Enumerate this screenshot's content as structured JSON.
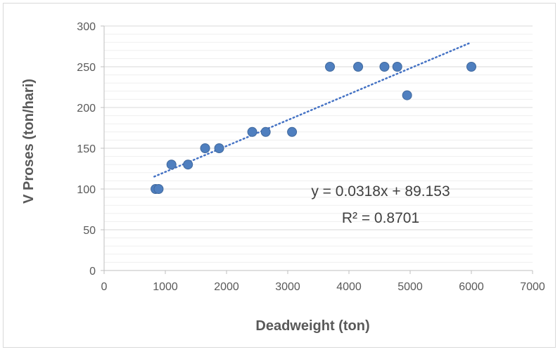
{
  "chart_data": {
    "type": "scatter",
    "xlabel": "Deadweight (ton)",
    "ylabel": "V Proses (ton/hari)",
    "xlim": [
      0,
      7000
    ],
    "ylim": [
      0,
      300
    ],
    "x_ticks": [
      0,
      1000,
      2000,
      3000,
      4000,
      5000,
      6000,
      7000
    ],
    "y_ticks": [
      0,
      50,
      100,
      150,
      200,
      250,
      300
    ],
    "grid": "horizontal major and minor",
    "legend": "none",
    "marker_color": "#4f7fbf",
    "trend_color": "#4472c4",
    "points": [
      {
        "x": 840,
        "y": 100
      },
      {
        "x": 890,
        "y": 100
      },
      {
        "x": 1100,
        "y": 130
      },
      {
        "x": 1370,
        "y": 130
      },
      {
        "x": 1650,
        "y": 150
      },
      {
        "x": 1880,
        "y": 150
      },
      {
        "x": 2420,
        "y": 170
      },
      {
        "x": 2640,
        "y": 170
      },
      {
        "x": 3070,
        "y": 170
      },
      {
        "x": 3690,
        "y": 250
      },
      {
        "x": 4150,
        "y": 250
      },
      {
        "x": 4580,
        "y": 250
      },
      {
        "x": 4790,
        "y": 250
      },
      {
        "x": 4950,
        "y": 215
      },
      {
        "x": 6000,
        "y": 250
      }
    ],
    "trendline": {
      "type": "linear",
      "slope": 0.0318,
      "intercept": 89.153,
      "x_range": [
        820,
        5960
      ],
      "equation_label": "y = 0.0318x + 89.153",
      "r2_label": "R² = 0.8701"
    }
  }
}
